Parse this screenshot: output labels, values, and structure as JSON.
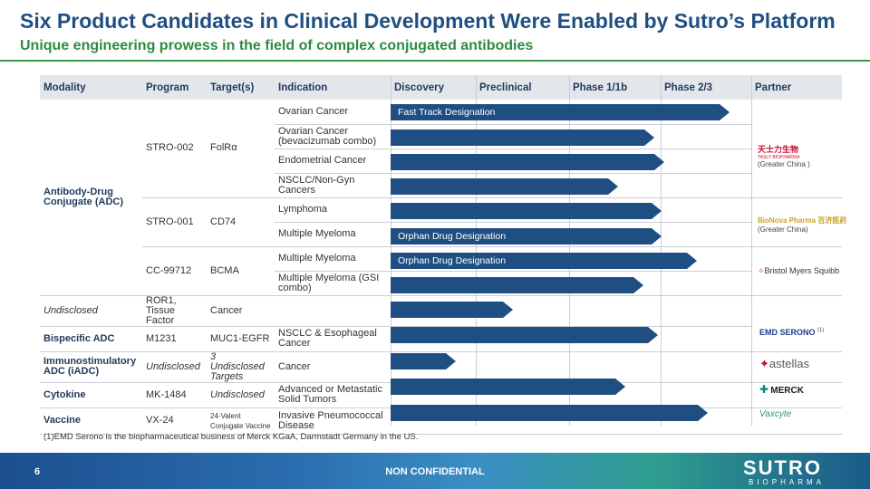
{
  "title": "Six Product Candidates in Clinical Development Were Enabled by Sutro’s Platform",
  "subtitle": "Unique engineering prowess in the field of complex conjugated antibodies",
  "headers": {
    "modality": "Modality",
    "program": "Program",
    "targets": "Target(s)",
    "indication": "Indication",
    "discovery": "Discovery",
    "preclinical": "Preclinical",
    "phase1": "Phase 1/1b",
    "phase2": "Phase 2/3",
    "partner": "Partner"
  },
  "modalities": {
    "adc": "Antibody-Drug Conjugate (ADC)",
    "bispecific": "Bispecific ADC",
    "iadc": "Immunostimulatory ADC (iADC)",
    "cytokine": "Cytokine",
    "vaccine": "Vaccine"
  },
  "programs": {
    "stro002": {
      "name": "STRO-002",
      "target": "FolRα"
    },
    "stro001": {
      "name": "STRO-001",
      "target": "CD74"
    },
    "cc99712": {
      "name": "CC-99712",
      "target": "BCMA"
    },
    "undisclosed1": {
      "name": "Undisclosed",
      "target": "ROR1, Tissue Factor"
    },
    "m1231": {
      "name": "M1231",
      "target": "MUC1-EGFR"
    },
    "undisclosed2": {
      "name": "Undisclosed",
      "target": "3 Undisclosed Targets"
    },
    "mk1484": {
      "name": "MK-1484",
      "target": "Undisclosed"
    },
    "vx24": {
      "name": "VX-24",
      "target": "24-Valent Conjugate Vaccine"
    }
  },
  "rows": [
    {
      "indication": "Ovarian Cancer",
      "stage": 0.94,
      "label": "Fast Track Designation"
    },
    {
      "indication": "Ovarian Cancer (bevacizumab combo)",
      "stage": 0.73,
      "label": ""
    },
    {
      "indication": "Endometrial Cancer",
      "stage": 0.76,
      "label": ""
    },
    {
      "indication": "NSCLC/Non-Gyn Cancers",
      "stage": 0.63,
      "label": ""
    },
    {
      "indication": "Lymphoma",
      "stage": 0.75,
      "label": ""
    },
    {
      "indication": "Multiple Myeloma",
      "stage": 0.75,
      "label": "Orphan Drug Designation"
    },
    {
      "indication": "Multiple Myeloma",
      "stage": 0.85,
      "label": "Orphan Drug Designation"
    },
    {
      "indication": "Multiple Myeloma (GSI combo)",
      "stage": 0.7,
      "label": ""
    },
    {
      "indication": "Cancer",
      "stage": 0.34,
      "label": ""
    },
    {
      "indication": "NSCLC & Esophageal Cancer",
      "stage": 0.74,
      "label": ""
    },
    {
      "indication": "Cancer",
      "stage": 0.18,
      "label": ""
    },
    {
      "indication": "Advanced or Metastatic Solid Tumors",
      "stage": 0.65,
      "label": ""
    },
    {
      "indication": "Invasive Pneumococcal Disease",
      "stage": 0.88,
      "label": ""
    }
  ],
  "partners": {
    "tasly": {
      "name": "天士力生物",
      "sub": "TASLY BIOPHARMA",
      "region": "(Greater China )"
    },
    "bioNova": {
      "name": "BioNova Pharma 百济医药",
      "region": "(Greater China)"
    },
    "bms": {
      "name": "Bristol Myers Squibb"
    },
    "emd": {
      "name": "EMD SERONO",
      "note": "(1)"
    },
    "astellas": {
      "name": "astellas"
    },
    "merck": {
      "name": "MERCK"
    },
    "vaxcyte": {
      "name": "Vaxcyte"
    }
  },
  "footnote": "(1)EMD Serono is the biopharmaceutical business of Merck KGaA, Darmstadt Germany in the US.",
  "footer": {
    "page": "6",
    "confidential": "NON CONFIDENTIAL",
    "brand": "SUTRO",
    "brand_sub": "BIOPHARMA"
  },
  "colors": {
    "title": "#1f4f82",
    "subtitle": "#2e8b3e",
    "bar": "#1f4f82"
  }
}
